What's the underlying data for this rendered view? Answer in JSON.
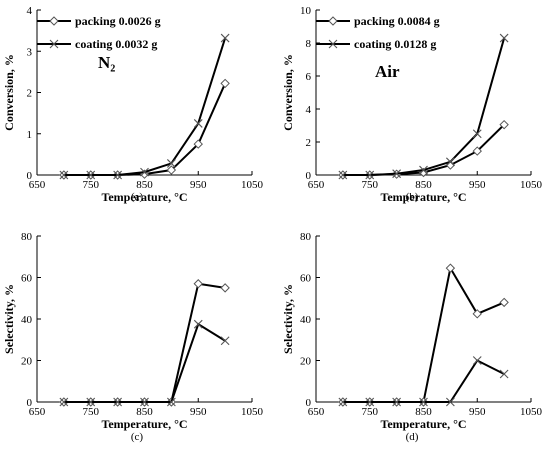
{
  "chart_data": [
    {
      "type": "line",
      "panel": "(a)",
      "annotation": "N₂",
      "xlabel": "Temperature, °C",
      "ylabel": "Conversion, %",
      "xlim": [
        650,
        1050
      ],
      "ylim": [
        0,
        4
      ],
      "xticks": [
        650,
        750,
        850,
        950,
        1050
      ],
      "yticks": [
        0,
        1,
        2,
        3,
        4
      ],
      "x": [
        700,
        750,
        800,
        850,
        900,
        950,
        1000
      ],
      "grid": false,
      "legend_placement": "top-left",
      "series": [
        {
          "name": "packing 0.0026 g",
          "marker": "diamond",
          "values": [
            0,
            0,
            0,
            0.02,
            0.12,
            0.75,
            2.22
          ]
        },
        {
          "name": "coating 0.0032 g",
          "marker": "x",
          "values": [
            0,
            0,
            0,
            0.07,
            0.28,
            1.25,
            3.32
          ]
        }
      ]
    },
    {
      "type": "line",
      "panel": "(b)",
      "annotation": "Air",
      "xlabel": "Temperature,  °C",
      "ylabel": "Conversion,  %",
      "xlim": [
        650,
        1050
      ],
      "ylim": [
        0,
        10
      ],
      "xticks": [
        650,
        750,
        850,
        950,
        1050
      ],
      "yticks": [
        0,
        2,
        4,
        6,
        8,
        10
      ],
      "x": [
        700,
        750,
        800,
        850,
        900,
        950,
        1000
      ],
      "grid": false,
      "legend_placement": "top-left",
      "series": [
        {
          "name": "packing 0.0084 g",
          "marker": "diamond",
          "values": [
            0,
            0,
            0.05,
            0.15,
            0.6,
            1.45,
            3.05
          ]
        },
        {
          "name": "coating 0.0128 g",
          "marker": "x",
          "values": [
            0,
            0,
            0.08,
            0.3,
            0.8,
            2.5,
            8.3
          ]
        }
      ]
    },
    {
      "type": "line",
      "panel": "(c)",
      "xlabel": "Temperature, °C",
      "ylabel": "Selectivity, %",
      "xlim": [
        650,
        1050
      ],
      "ylim": [
        0,
        80
      ],
      "xticks": [
        650,
        750,
        850,
        950,
        1050
      ],
      "yticks": [
        0,
        20,
        40,
        60,
        80
      ],
      "x": [
        700,
        750,
        800,
        850,
        900,
        950,
        1000
      ],
      "grid": false,
      "series": [
        {
          "marker": "diamond",
          "values": [
            0,
            0,
            0,
            0,
            0,
            57,
            55
          ]
        },
        {
          "marker": "x",
          "values": [
            0,
            0,
            0,
            0,
            0,
            37.5,
            29.5
          ]
        }
      ]
    },
    {
      "type": "line",
      "panel": "(d)",
      "xlabel": "Temperature,  °C",
      "ylabel": "Selectivity,  %",
      "xlim": [
        650,
        1050
      ],
      "ylim": [
        0,
        80
      ],
      "xticks": [
        650,
        750,
        850,
        950,
        1050
      ],
      "yticks": [
        0,
        20,
        40,
        60,
        80
      ],
      "x": [
        700,
        750,
        800,
        850,
        900,
        950,
        1000
      ],
      "grid": false,
      "series": [
        {
          "marker": "diamond",
          "values": [
            0,
            0,
            0,
            0,
            64.5,
            42.5,
            48
          ]
        },
        {
          "marker": "x",
          "values": [
            0,
            0,
            0,
            0,
            0,
            20,
            13.5
          ]
        }
      ]
    }
  ]
}
